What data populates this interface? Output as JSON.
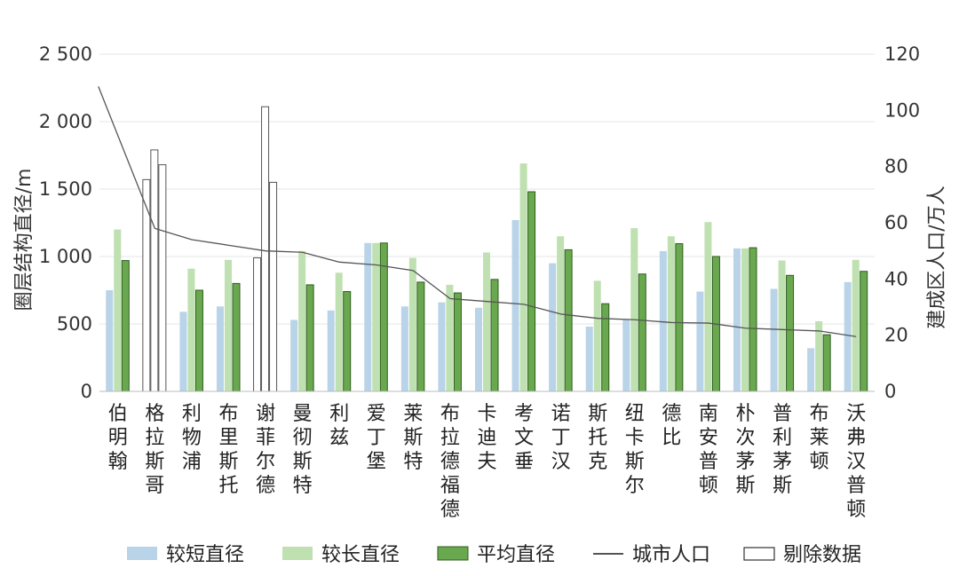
{
  "chart_data": {
    "type": "bar",
    "title": "",
    "ylabel_left": "圈层结构直径/m",
    "ylabel_right": "建成区人口/万人",
    "ylim_left": [
      0,
      2500
    ],
    "ylim_right": [
      0,
      120
    ],
    "yticks_left": [
      "0",
      "500",
      "1 000",
      "1 500",
      "2 000",
      "2 500"
    ],
    "yticks_right": [
      "0",
      "20",
      "40",
      "60",
      "80",
      "100",
      "120"
    ],
    "grid": true,
    "legend_position": "bottom",
    "categories": [
      "伯明翰",
      "格拉斯哥",
      "利物浦",
      "布里斯托",
      "谢菲尔德",
      "曼彻斯特",
      "利兹",
      "爱丁堡",
      "莱斯特",
      "布拉德福德",
      "卡迪夫",
      "考文垂",
      "诺丁汉",
      "斯托克",
      "纽卡斯尔",
      "德比",
      "南安普顿",
      "朴次茅斯",
      "普利茅斯",
      "布莱顿",
      "沃弗汉普顿"
    ],
    "excluded_categories": [
      "格拉斯哥",
      "谢菲尔德"
    ],
    "series": [
      {
        "name": "较短直径",
        "type": "bar",
        "axis": "left",
        "color": "#b9d3e8",
        "values": [
          750,
          1570,
          590,
          630,
          990,
          530,
          600,
          1100,
          630,
          660,
          620,
          1270,
          950,
          480,
          530,
          1040,
          740,
          1060,
          760,
          320,
          810
        ]
      },
      {
        "name": "较长直径",
        "type": "bar",
        "axis": "left",
        "color": "#bfe0b0",
        "values": [
          1200,
          1790,
          910,
          975,
          2110,
          1040,
          880,
          1100,
          990,
          790,
          1030,
          1690,
          1150,
          820,
          1210,
          1150,
          1255,
          1060,
          970,
          520,
          975
        ]
      },
      {
        "name": "平均直径",
        "type": "bar",
        "axis": "left",
        "color": "#6aa84f",
        "values": [
          970,
          1680,
          750,
          800,
          1550,
          790,
          740,
          1100,
          810,
          730,
          830,
          1480,
          1050,
          650,
          870,
          1095,
          1000,
          1065,
          860,
          420,
          890
        ]
      },
      {
        "name": "城市人口",
        "type": "line",
        "axis": "right",
        "color": "#555555",
        "values": [
          108.5,
          58,
          54,
          52,
          50,
          49.5,
          46,
          45,
          43,
          33,
          32,
          31,
          27.5,
          26,
          25.5,
          24.5,
          24.3,
          22.5,
          22,
          21.5,
          19.5
        ]
      },
      {
        "name": "剔除数据",
        "type": "legend-only",
        "color": "#ffffff"
      }
    ]
  }
}
